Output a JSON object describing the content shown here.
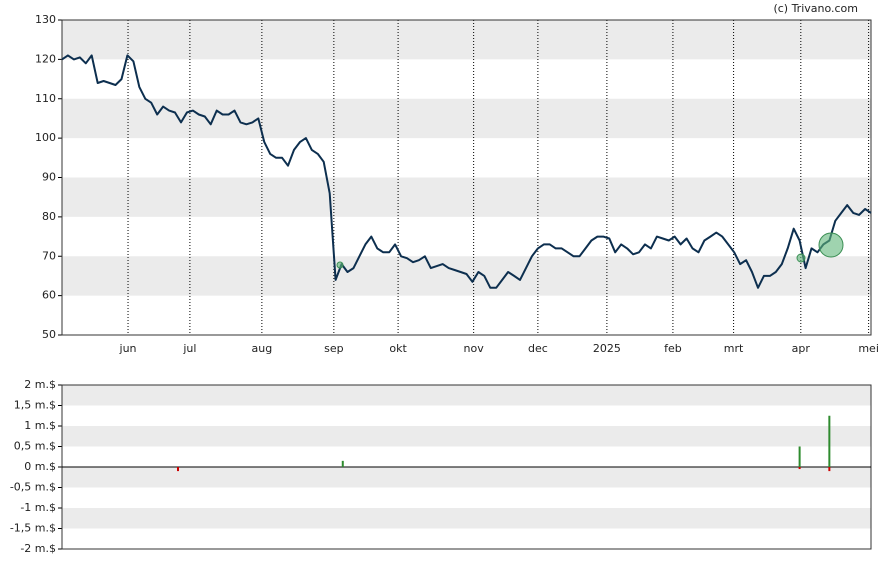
{
  "chart_data": [
    {
      "type": "line",
      "credit": "(c) Trivano.com",
      "series": [
        {
          "color": "#0d2f4f",
          "values": [
            120,
            121,
            120,
            120.5,
            119,
            121,
            114,
            114.5,
            114,
            113.5,
            115,
            121,
            119.5,
            113,
            110,
            109,
            106,
            108,
            107,
            106.5,
            104,
            106.5,
            107,
            106,
            105.5,
            103.5,
            107,
            106,
            106,
            107,
            104,
            103.5,
            104,
            105,
            99,
            96,
            95,
            95,
            93,
            97,
            99,
            100,
            97,
            96,
            94,
            86,
            64,
            68,
            66,
            67,
            70,
            73,
            75,
            72,
            71,
            71,
            73,
            70,
            69.5,
            68.5,
            69,
            70,
            67,
            67.5,
            68,
            67,
            66.5,
            66,
            65.5,
            63.5,
            66,
            65,
            62,
            62,
            64,
            66,
            65,
            64,
            67,
            70,
            72,
            73,
            73,
            72,
            72,
            71,
            70,
            70,
            72,
            74,
            75,
            75,
            74.5,
            71,
            73,
            72,
            70.5,
            71,
            73,
            72,
            75,
            74.5,
            74,
            75,
            73,
            74.5,
            72,
            71,
            74,
            75,
            76,
            75,
            73,
            71,
            68,
            69,
            66,
            62,
            65,
            65,
            66,
            68,
            72,
            77,
            74,
            67,
            72,
            71,
            73,
            74,
            79,
            81,
            83,
            81,
            80.5,
            82,
            81
          ]
        }
      ],
      "xlim": [
        0,
        136
      ],
      "xticks": [
        {
          "value": 11.1,
          "label": "jun"
        },
        {
          "value": 21.5,
          "label": "jul"
        },
        {
          "value": 33.6,
          "label": "aug"
        },
        {
          "value": 45.7,
          "label": "sep"
        },
        {
          "value": 56.5,
          "label": "okt"
        },
        {
          "value": 69.2,
          "label": "nov"
        },
        {
          "value": 80,
          "label": "dec"
        },
        {
          "value": 91.6,
          "label": "2025"
        },
        {
          "value": 102.7,
          "label": "feb"
        },
        {
          "value": 112.9,
          "label": "mrt"
        },
        {
          "value": 124.2,
          "label": "apr"
        },
        {
          "value": 135.6,
          "label": "mei"
        }
      ],
      "ylim": [
        50,
        130
      ],
      "yticks": [
        50,
        60,
        70,
        80,
        90,
        100,
        110,
        120,
        130
      ],
      "grid": "bands"
    },
    {
      "type": "bar",
      "x": [
        19.5,
        47.2,
        124,
        129
      ],
      "series": [
        {
          "color": "#2e8b2e",
          "values": [
            null,
            0.15,
            0.5,
            1.25
          ]
        },
        {
          "color": "#cc0000",
          "values": [
            -0.1,
            null,
            -0.05,
            -0.1
          ]
        }
      ],
      "xlim": [
        0,
        136
      ],
      "ylim": [
        -2,
        2
      ],
      "yticks": [
        {
          "value": -2,
          "label": "-2 m.$"
        },
        {
          "value": -1.5,
          "label": "-1,5 m.$"
        },
        {
          "value": -1,
          "label": "-1 m.$"
        },
        {
          "value": -0.5,
          "label": "-0,5 m.$"
        },
        {
          "value": 0,
          "label": "0 m.$"
        },
        {
          "value": 0.5,
          "label": "0,5 m.$"
        },
        {
          "value": 1,
          "label": "1 m.$"
        },
        {
          "value": 1.5,
          "label": "1,5 m.$"
        },
        {
          "value": 2,
          "label": "2 m.$"
        }
      ],
      "grid": "bands"
    }
  ]
}
